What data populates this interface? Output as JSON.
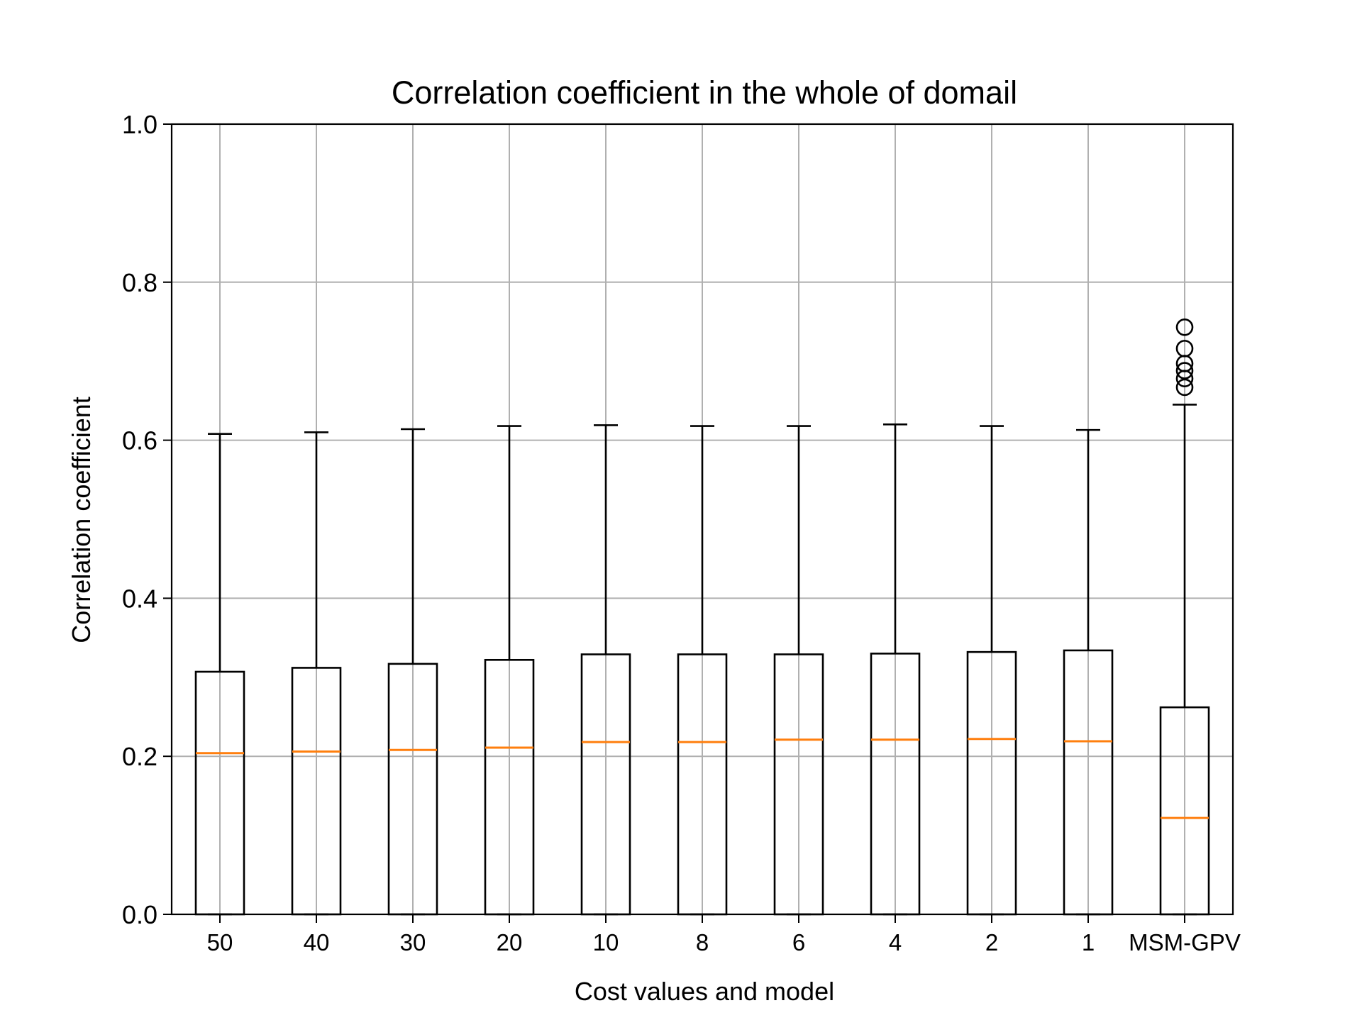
{
  "chart_data": {
    "type": "box",
    "title": "Correlation coefficient in the whole of domail",
    "xlabel": "Cost values and model",
    "ylabel": "Correlation coefficient",
    "ylim": [
      0.0,
      1.0
    ],
    "yticks": [
      "0.0",
      "0.2",
      "0.4",
      "0.6",
      "0.8",
      "1.0"
    ],
    "ytick_values": [
      0.0,
      0.2,
      0.4,
      0.6,
      0.8,
      1.0
    ],
    "grid": true,
    "categories": [
      "50",
      "40",
      "30",
      "20",
      "10",
      "8",
      "6",
      "4",
      "2",
      "1",
      "MSM-GPV"
    ],
    "boxes": [
      {
        "whisker_low": 0.0,
        "q1": 0.0,
        "median": 0.204,
        "q3": 0.307,
        "whisker_high": 0.608,
        "outliers": []
      },
      {
        "whisker_low": 0.0,
        "q1": 0.0,
        "median": 0.206,
        "q3": 0.312,
        "whisker_high": 0.61,
        "outliers": []
      },
      {
        "whisker_low": 0.0,
        "q1": 0.0,
        "median": 0.208,
        "q3": 0.317,
        "whisker_high": 0.614,
        "outliers": []
      },
      {
        "whisker_low": 0.0,
        "q1": 0.0,
        "median": 0.211,
        "q3": 0.322,
        "whisker_high": 0.618,
        "outliers": []
      },
      {
        "whisker_low": 0.0,
        "q1": 0.0,
        "median": 0.218,
        "q3": 0.329,
        "whisker_high": 0.619,
        "outliers": []
      },
      {
        "whisker_low": 0.0,
        "q1": 0.0,
        "median": 0.218,
        "q3": 0.329,
        "whisker_high": 0.618,
        "outliers": []
      },
      {
        "whisker_low": 0.0,
        "q1": 0.0,
        "median": 0.221,
        "q3": 0.329,
        "whisker_high": 0.618,
        "outliers": []
      },
      {
        "whisker_low": 0.0,
        "q1": 0.0,
        "median": 0.221,
        "q3": 0.33,
        "whisker_high": 0.62,
        "outliers": []
      },
      {
        "whisker_low": 0.0,
        "q1": 0.0,
        "median": 0.222,
        "q3": 0.332,
        "whisker_high": 0.618,
        "outliers": []
      },
      {
        "whisker_low": 0.0,
        "q1": 0.0,
        "median": 0.219,
        "q3": 0.334,
        "whisker_high": 0.613,
        "outliers": []
      },
      {
        "whisker_low": 0.0,
        "q1": 0.0,
        "median": 0.122,
        "q3": 0.262,
        "whisker_high": 0.645,
        "outliers": [
          0.743,
          0.716,
          0.697,
          0.688,
          0.678,
          0.667
        ]
      }
    ],
    "colors": {
      "box": "#000000",
      "median": "#ff7f0e",
      "grid": "#b0b0b0",
      "background": "#ffffff"
    }
  }
}
